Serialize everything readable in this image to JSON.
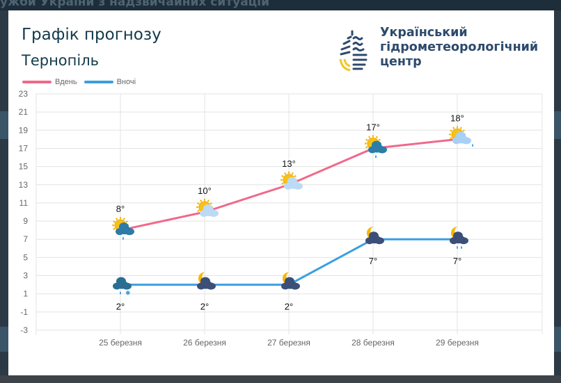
{
  "background": {
    "heading": "ужби України з надзвичайних ситуацій"
  },
  "header": {
    "title": "Графік прогнозу",
    "city": "Тернопіль"
  },
  "logo": {
    "line1": "Український",
    "line2": "гідрометеорологічний",
    "line3": "центр"
  },
  "legend": {
    "day": "Вдень",
    "night": "Вночі"
  },
  "colors": {
    "day": "#f0698a",
    "night": "#3b9fe0",
    "grid": "#e3e3e3"
  },
  "chart_data": {
    "type": "line",
    "categories": [
      "25 березня",
      "26 березня",
      "27 березня",
      "28 березня",
      "29 березня"
    ],
    "ylim": [
      -3,
      23
    ],
    "yticks": [
      23,
      21,
      19,
      17,
      15,
      13,
      11,
      9,
      7,
      5,
      3,
      1,
      -1,
      -3
    ],
    "grid": true,
    "legend_position": "top-left",
    "series": [
      {
        "name": "Вдень",
        "values": [
          8,
          10,
          13,
          17,
          18
        ],
        "labels": [
          "8°",
          "10°",
          "13°",
          "17°",
          "18°"
        ],
        "icons": [
          "sun-cloud-rain",
          "sun-cloud",
          "sun-cloud",
          "sun-dark-cloud-rain",
          "sun-light-cloud-rain"
        ]
      },
      {
        "name": "Вночі",
        "values": [
          2,
          2,
          2,
          7,
          7
        ],
        "labels": [
          "2°",
          "2°",
          "2°",
          "7°",
          "7°"
        ],
        "icons": [
          "cloud-rain-snow",
          "moon-cloud",
          "moon-cloud",
          "moon-cloud",
          "moon-cloud-rain"
        ]
      }
    ]
  }
}
